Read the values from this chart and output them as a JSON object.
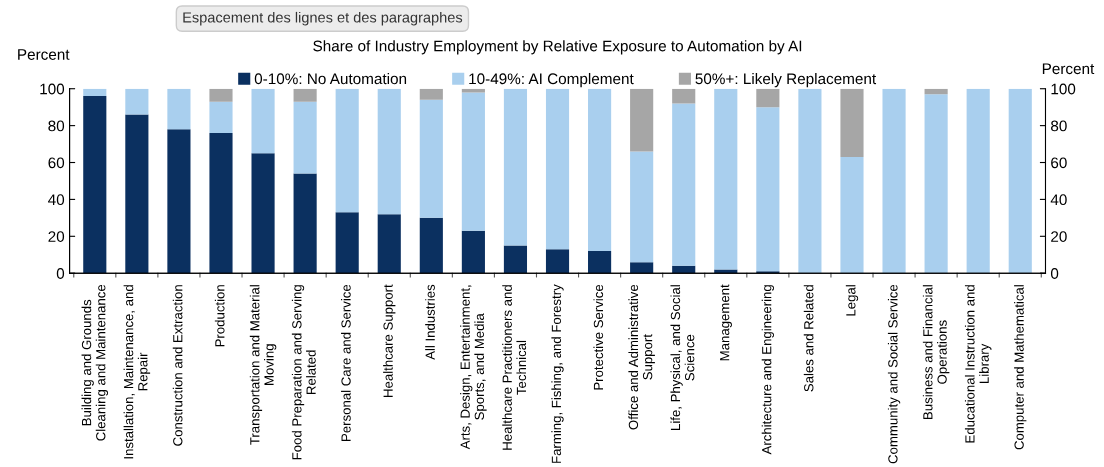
{
  "chart_data": {
    "type": "bar",
    "stacked": true,
    "title": "Share of Industry Employment by Relative Exposure to Automation by AI",
    "ylabel": "Percent",
    "y2label": "Percent",
    "annotations": [
      "Espacement des lignes et des paragraphes"
    ],
    "categories": [
      "Building and Grounds\nCleaning and Maintenance",
      "Installation, Maintenance, and\nRepair",
      "Construction and Extraction",
      "Production",
      "Transportation and Material\nMoving",
      "Food Preparation and Serving\nRelated",
      "Personal Care and Service",
      "Healthcare Support",
      "All Industries",
      "Arts, Design, Entertainment,\nSports, and Media",
      "Healthcare Practitioners and\nTechnical",
      "Farming, Fishing, and Forestry",
      "Protective Service",
      "Office and Administrative\nSupport",
      "Life, Physical, and Social\nScience",
      "Management",
      "Architecture and Engineering",
      "Sales and Related",
      "Legal",
      "Community and Social Service",
      "Business and Financial\nOperations",
      "Educational Instruction and\nLibrary",
      "Computer and Mathematical"
    ],
    "series": [
      {
        "name": "0-10%: No Automation",
        "color": "#0b3060",
        "values": [
          96,
          86,
          78,
          76,
          65,
          54,
          33,
          32,
          30,
          23,
          15,
          13,
          12,
          6,
          4,
          2,
          1,
          0,
          0,
          0,
          0,
          0,
          0
        ]
      },
      {
        "name": "10-49%: AI Complement",
        "color": "#a9cfee",
        "values": [
          4,
          14,
          22,
          17,
          35,
          39,
          67,
          68,
          64,
          75,
          85,
          87,
          88,
          60,
          88,
          98,
          89,
          100,
          63,
          100,
          97,
          100,
          100
        ]
      },
      {
        "name": "50%+: Likely Replacement",
        "color": "#a6a6a6",
        "values": [
          0,
          0,
          0,
          7,
          0,
          7,
          0,
          0,
          6,
          2,
          0,
          0,
          0,
          34,
          8,
          0,
          10,
          0,
          37,
          0,
          3,
          0,
          0
        ]
      }
    ],
    "ylim": [
      0,
      100
    ],
    "yticks": [
      0,
      20,
      40,
      60,
      80,
      100
    ],
    "y2lim": [
      0,
      100
    ],
    "y2ticks": [
      0,
      20,
      40,
      60,
      80,
      100
    ],
    "grid": false,
    "legend": "top"
  }
}
